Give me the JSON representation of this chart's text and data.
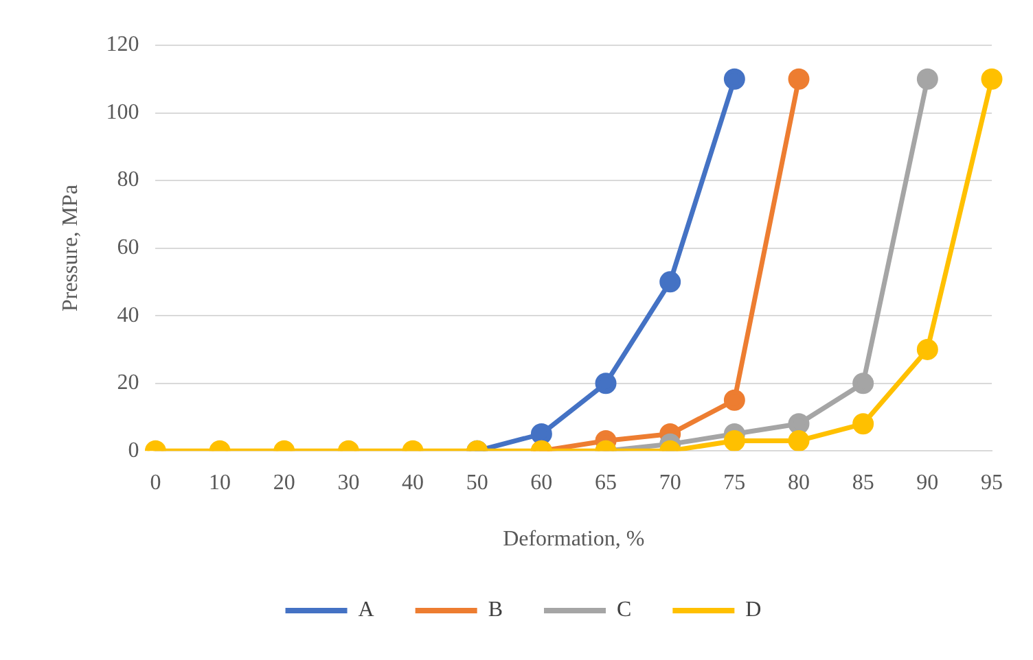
{
  "chart_data": {
    "type": "line",
    "xlabel": "Deformation, %",
    "ylabel": "Pressure, MPa",
    "categories": [
      "0",
      "10",
      "20",
      "30",
      "40",
      "50",
      "60",
      "65",
      "70",
      "75",
      "80",
      "85",
      "90",
      "95"
    ],
    "series": [
      {
        "name": "A",
        "color": "#4472c4",
        "values": [
          null,
          null,
          null,
          null,
          null,
          0,
          5,
          20,
          50,
          110,
          null,
          null,
          null,
          null
        ]
      },
      {
        "name": "B",
        "color": "#ed7d31",
        "values": [
          null,
          null,
          null,
          null,
          null,
          null,
          0,
          3,
          5,
          15,
          110,
          null,
          null,
          null
        ]
      },
      {
        "name": "C",
        "color": "#a5a5a5",
        "values": [
          null,
          null,
          null,
          null,
          null,
          null,
          null,
          0,
          2,
          5,
          8,
          20,
          110,
          null
        ]
      },
      {
        "name": "D",
        "color": "#ffc000",
        "values": [
          0,
          0,
          0,
          0,
          0,
          0,
          0,
          0,
          0,
          3,
          3,
          8,
          30,
          110
        ]
      }
    ],
    "ylim": [
      0,
      120
    ],
    "yticks": [
      0,
      20,
      40,
      60,
      80,
      100,
      120
    ],
    "grid": "y",
    "legend": "bottom",
    "marker": "circle",
    "line_style": "solid"
  }
}
